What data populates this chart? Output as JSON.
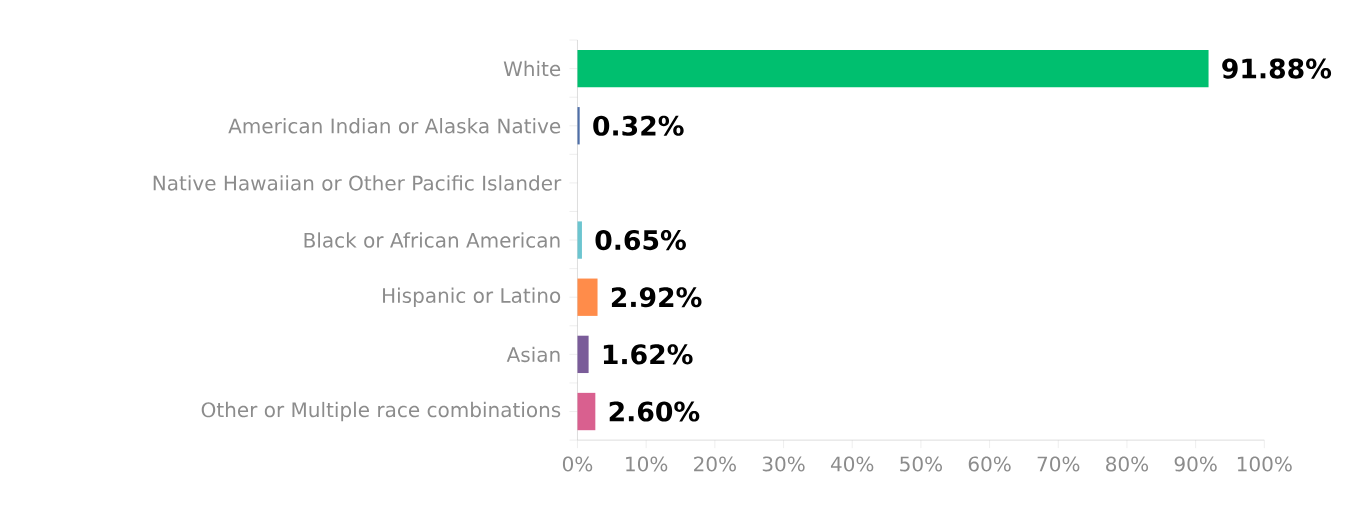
{
  "chart_data": {
    "type": "bar",
    "orientation": "horizontal",
    "categories": [
      "White",
      "American Indian or Alaska Native",
      "Native Hawaiian or Other Pacific Islander",
      "Black or African American",
      "Hispanic or Latino",
      "Asian",
      "Other or Multiple race combinations"
    ],
    "values": [
      91.88,
      0.32,
      null,
      0.65,
      2.92,
      1.62,
      2.6
    ],
    "colors": [
      "#00bf6f",
      "#4f6fa8",
      "#8fa0c0",
      "#6cc5d0",
      "#ff8c4a",
      "#7a5c99",
      "#d9608f"
    ],
    "value_labels": [
      "91.88%",
      "0.32%",
      null,
      "0.65%",
      "2.92%",
      "1.62%",
      "2.60%"
    ],
    "xlim": [
      0,
      100
    ],
    "xticks": [
      {
        "value": 0,
        "label": "0%"
      },
      {
        "value": 10,
        "label": "10%"
      },
      {
        "value": 20,
        "label": "20%"
      },
      {
        "value": 30,
        "label": "30%"
      },
      {
        "value": 40,
        "label": "40%"
      },
      {
        "value": 50,
        "label": "50%"
      },
      {
        "value": 60,
        "label": "60%"
      },
      {
        "value": 70,
        "label": "70%"
      },
      {
        "value": 80,
        "label": "80%"
      },
      {
        "value": 90,
        "label": "90%"
      },
      {
        "value": 100,
        "label": "100%"
      }
    ],
    "grid": false
  }
}
